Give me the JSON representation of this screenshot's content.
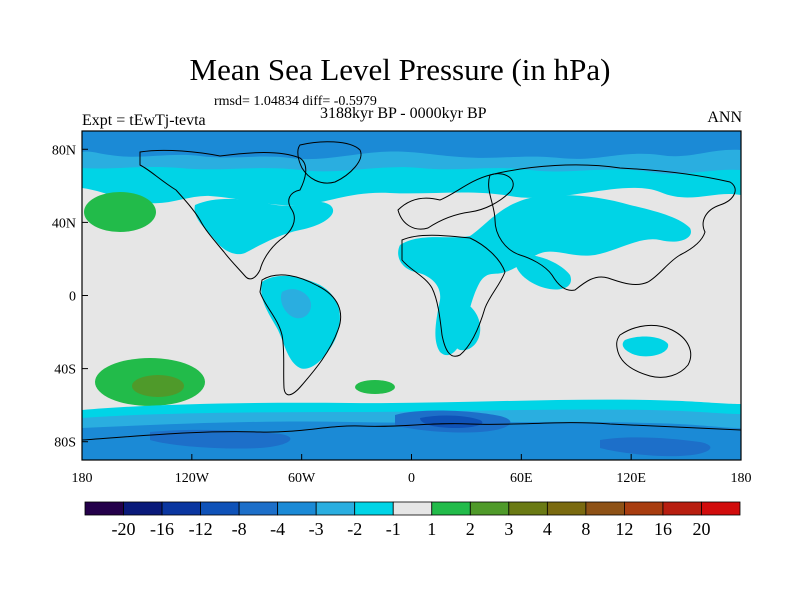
{
  "title": "Mean Sea Level Pressure (in hPa)",
  "stats": "rmsd= 1.04834 diff= -0.5979",
  "experiment": "Expt = tEwTj-tevta",
  "period": "3188kyr BP - 0000kyr BP",
  "season": "ANN",
  "axes": {
    "y_ticks": [
      {
        "label": "80N",
        "lat": 80
      },
      {
        "label": "40N",
        "lat": 40
      },
      {
        "label": "0",
        "lat": 0
      },
      {
        "label": "40S",
        "lat": -40
      },
      {
        "label": "80S",
        "lat": -80
      }
    ],
    "x_ticks": [
      {
        "label": "180",
        "lon": -180
      },
      {
        "label": "120W",
        "lon": -120
      },
      {
        "label": "60W",
        "lon": -60
      },
      {
        "label": "0",
        "lon": 0
      },
      {
        "label": "60E",
        "lon": 60
      },
      {
        "label": "120E",
        "lon": 120
      },
      {
        "label": "180",
        "lon": 180
      }
    ]
  },
  "colorbar": {
    "colors": [
      "#24004a",
      "#0a1a7a",
      "#0a36a0",
      "#0f52b8",
      "#1d6fc9",
      "#1b8ad6",
      "#2aaee0",
      "#00d4e6",
      "#e6e6e6",
      "#22bb4a",
      "#4f9a2a",
      "#6a7a14",
      "#7a6a10",
      "#8e5216",
      "#a83d10",
      "#b81e10",
      "#d10c0c"
    ],
    "labels": [
      "-20",
      "-16",
      "-12",
      "-8",
      "-4",
      "-3",
      "-2",
      "-1",
      "1",
      "2",
      "3",
      "4",
      "8",
      "12",
      "16",
      "20"
    ]
  },
  "colors": {
    "neutral": "#e6e6e6",
    "minus1": "#00d4e6",
    "minus2": "#2aaee0",
    "minus3": "#1b8ad6",
    "minus4": "#1d6fc9",
    "minus8": "#0f52b8",
    "plus2": "#22bb4a",
    "plus3": "#4f9a2a"
  }
}
